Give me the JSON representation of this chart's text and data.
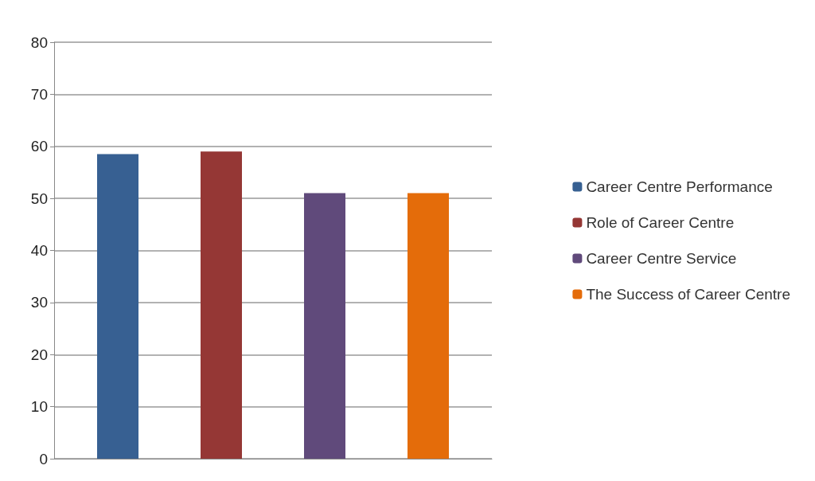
{
  "chart_data": {
    "type": "bar",
    "categories": [
      null
    ],
    "series": [
      {
        "name": "Career Centre Performance",
        "color": "#376092",
        "values": [
          58.5
        ]
      },
      {
        "name": "Role of Career Centre",
        "color": "#953735",
        "values": [
          59
        ]
      },
      {
        "name": "Career Centre Service",
        "color": "#604a7b",
        "values": [
          51
        ]
      },
      {
        "name": "The Success of Career Centre",
        "color": "#e46c0a",
        "values": [
          51
        ]
      }
    ],
    "ylim": [
      0,
      80
    ],
    "yticks": [
      0,
      10,
      20,
      30,
      40,
      50,
      60,
      70,
      80
    ],
    "grid": "y",
    "legend": "right"
  }
}
